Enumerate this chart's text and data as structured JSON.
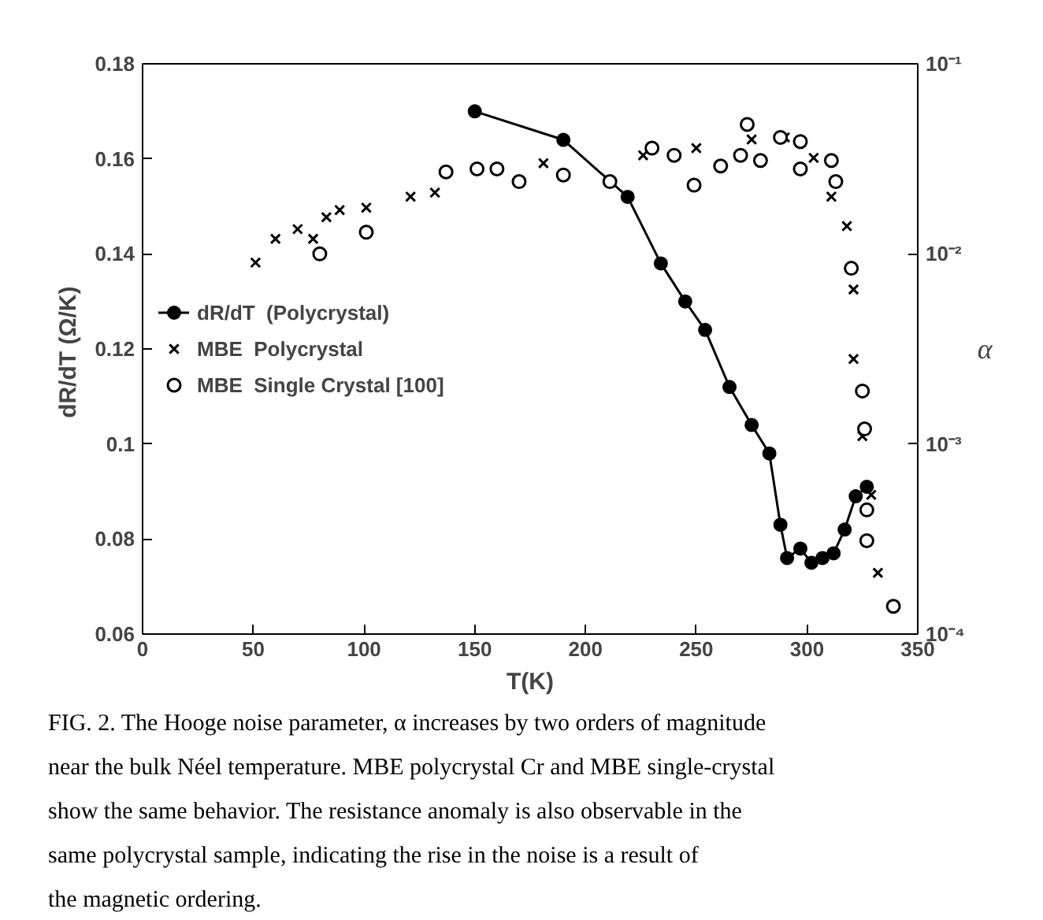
{
  "chart_data": {
    "type": "scatter",
    "xlabel": "T(K)",
    "ylabel": "dR/dT  (Ω/K)",
    "y2label": "α",
    "xlim": [
      0,
      350
    ],
    "xticks": [
      0,
      50,
      100,
      150,
      200,
      250,
      300,
      350
    ],
    "ylim": [
      0.06,
      0.18
    ],
    "yticks": [
      0.06,
      0.08,
      0.1,
      0.12,
      0.14,
      0.16,
      0.18
    ],
    "y2lim": [
      0.0001,
      0.1
    ],
    "y2ticks": [
      {
        "value": 0.1,
        "label": "10⁻¹"
      },
      {
        "value": 0.01,
        "label": "10⁻²"
      },
      {
        "value": 0.001,
        "label": "10⁻³"
      },
      {
        "value": 0.0001,
        "label": "10⁻⁴"
      }
    ],
    "log": "y2",
    "grid": false,
    "legend": "left",
    "series": [
      {
        "name": "dR/dT  (Polycrystal)",
        "type": "line",
        "marker": "circle",
        "color": "#000000",
        "x": [
          150,
          190,
          219,
          234,
          245,
          254,
          265,
          275,
          283,
          288,
          291,
          297,
          302,
          307,
          312,
          317,
          322,
          327
        ],
        "values": [
          0.17,
          0.164,
          0.152,
          0.138,
          0.13,
          0.124,
          0.112,
          0.104,
          0.098,
          0.083,
          0.076,
          0.078,
          0.075,
          0.076,
          0.077,
          0.082,
          0.089,
          0.091
        ]
      },
      {
        "name": "MBE  Polycrystal",
        "marker": "cross",
        "color": "#000000",
        "axis": "y2",
        "x": [
          51,
          60,
          70,
          77,
          83,
          89,
          101,
          121,
          132,
          181,
          226,
          250,
          275,
          290,
          303,
          311,
          318,
          321,
          321,
          325,
          329,
          332
        ],
        "values": [
          0.009,
          0.012,
          0.0135,
          0.012,
          0.0156,
          0.017,
          0.0175,
          0.02,
          0.021,
          0.03,
          0.033,
          0.036,
          0.04,
          0.041,
          0.032,
          0.02,
          0.014,
          0.0065,
          0.0028,
          0.0011,
          0.00054,
          0.00021
        ]
      },
      {
        "name": "MBE  Single Crystal [100]",
        "marker": "circle",
        "color": "#000000",
        "axis": "y2",
        "x": [
          80,
          101,
          137,
          151,
          160,
          170,
          190,
          211,
          230,
          240,
          249,
          261,
          270,
          273,
          279,
          288,
          297,
          297,
          311,
          313,
          320,
          325,
          326,
          327,
          327,
          339
        ],
        "values": [
          0.01,
          0.013,
          0.027,
          0.028,
          0.028,
          0.024,
          0.026,
          0.024,
          0.036,
          0.033,
          0.023,
          0.029,
          0.033,
          0.048,
          0.031,
          0.041,
          0.039,
          0.028,
          0.031,
          0.024,
          0.0084,
          0.0019,
          0.0012,
          0.00045,
          0.00031,
          0.00014
        ]
      }
    ],
    "annotations": [
      "FIG. 2.  The Hooge noise parameter, α increases by two orders of magnitude near the bulk Néel temperature.  MBE polycrystal Cr and MBE single-crystal show the same behavior.  The resistance anomaly is also observable in the same polycrystal sample, indicating the rise in the noise is a result of the magnetic ordering."
    ]
  }
}
